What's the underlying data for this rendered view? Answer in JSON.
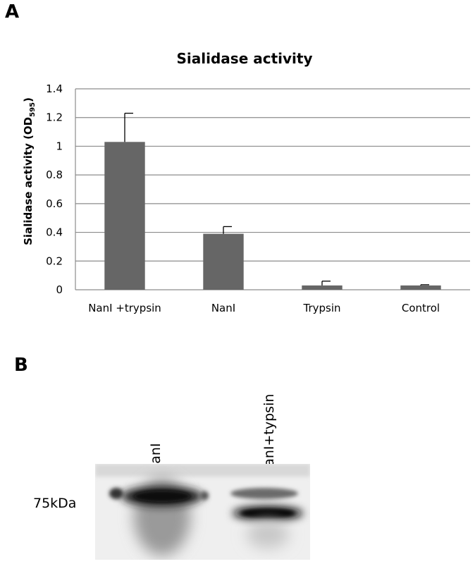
{
  "panel_a_label": "A",
  "panel_b_label": "B",
  "chart_data": {
    "type": "bar",
    "title": "Sialidase activity",
    "ylabel_main": "Sialidase activity (OD",
    "ylabel_sub": "595",
    "ylabel_close": ")",
    "categories": [
      "NanI +trypsin",
      "NanI",
      "Trypsin",
      "Control"
    ],
    "values": [
      1.03,
      0.39,
      0.03,
      0.03
    ],
    "errors": [
      0.2,
      0.05,
      0.03,
      0.005
    ],
    "ylim": [
      0,
      1.4
    ],
    "yticks": [
      "0",
      "0.2",
      "0.4",
      "0.6",
      "0.8",
      "1",
      "1.2",
      "1.4"
    ],
    "bar_color": "#666666",
    "grid": true
  },
  "blot": {
    "lane_labels": [
      "NanI",
      "NanI+typsin"
    ],
    "marker_label": "75kDa"
  }
}
